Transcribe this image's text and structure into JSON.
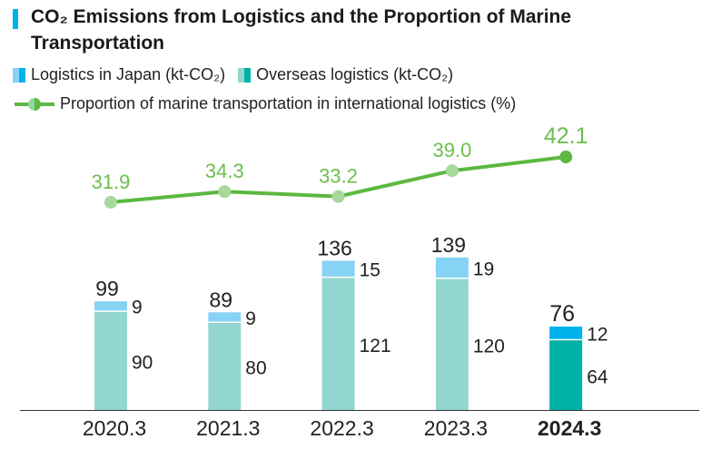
{
  "title": "CO₂ Emissions from Logistics and the Proportion of Marine Transportation",
  "legend": {
    "japan": "Logistics in Japan (kt-CO₂)",
    "overseas": "Overseas logistics (kt-CO₂)",
    "marine": "Proportion of marine transportation in international logistics (%)"
  },
  "colors": {
    "japan": "#87d3f5",
    "japan_highlight": "#00b2ec",
    "overseas": "#93d6cf",
    "overseas_highlight": "#00b1a5",
    "line": "#5cb840",
    "line_label": "#6abf4b",
    "title_bar": "#00b0e8"
  },
  "chart_data": {
    "type": "bar",
    "stacked": true,
    "categories": [
      "2020.3",
      "2021.3",
      "2022.3",
      "2023.3",
      "2024.3"
    ],
    "highlight_category": "2024.3",
    "series": [
      {
        "name": "Overseas logistics (kt-CO₂)",
        "values": [
          90,
          80,
          121,
          120,
          64
        ]
      },
      {
        "name": "Logistics in Japan (kt-CO₂)",
        "values": [
          9,
          9,
          15,
          19,
          12
        ]
      }
    ],
    "totals": [
      99,
      89,
      136,
      139,
      76
    ],
    "line_series": {
      "name": "Proportion of marine transportation in international logistics (%)",
      "values": [
        31.9,
        34.3,
        33.2,
        39.0,
        42.1
      ],
      "labels": [
        "31.9",
        "34.3",
        "33.2",
        "39.0",
        "42.1"
      ]
    },
    "grid": false,
    "legend_position": "top-left"
  }
}
